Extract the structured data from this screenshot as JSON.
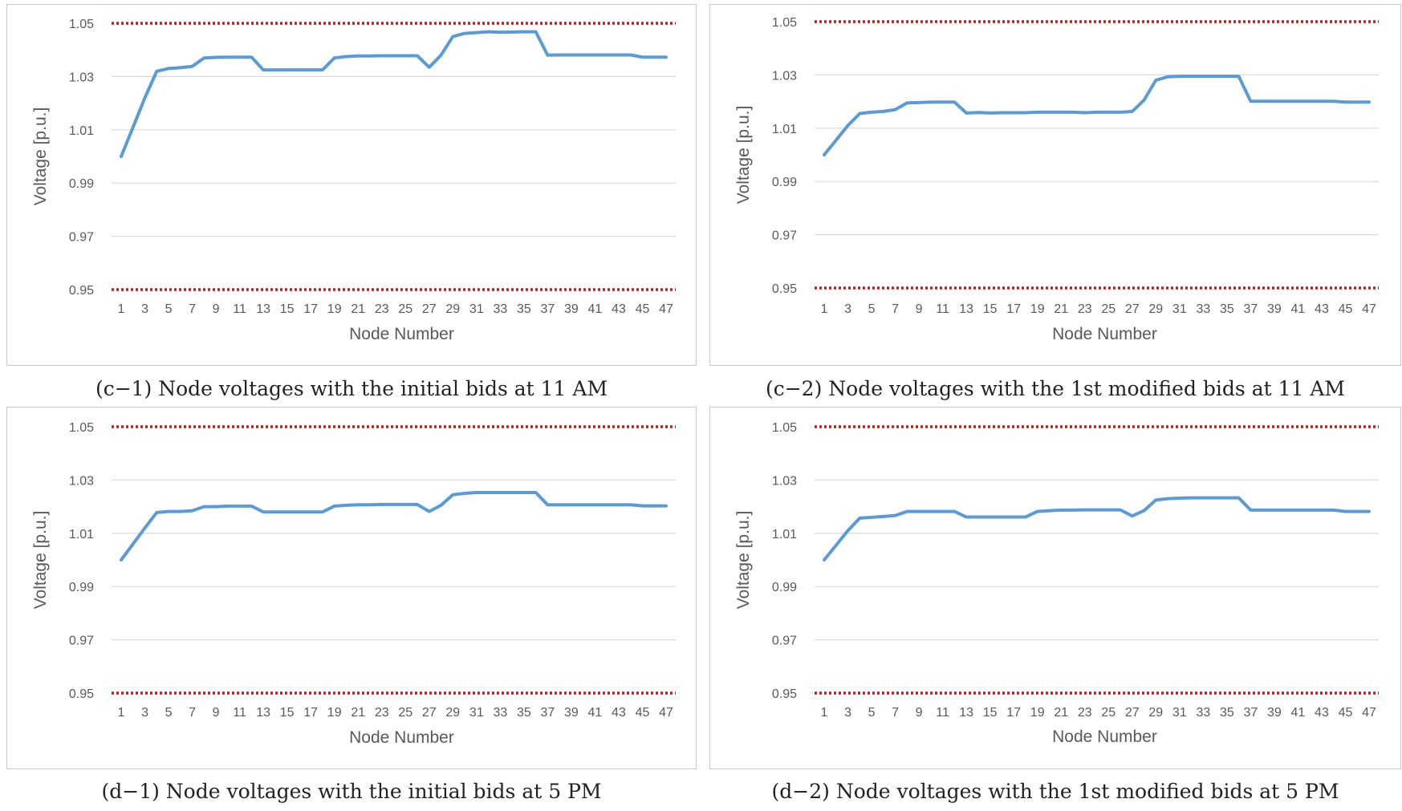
{
  "chart_data": [
    {
      "type": "line",
      "caption": "(c−1) Node voltages with the initial bids at 11 AM",
      "xlabel": "Node Number",
      "ylabel": "Voltage [p.u.]",
      "ylim": [
        0.95,
        1.05
      ],
      "yticks": [
        "1.05",
        "1.03",
        "1.01",
        "0.99",
        "0.97",
        "0.95"
      ],
      "xticks": [
        "1",
        "3",
        "5",
        "7",
        "9",
        "11",
        "13",
        "15",
        "17",
        "19",
        "21",
        "23",
        "25",
        "27",
        "29",
        "31",
        "33",
        "35",
        "37",
        "39",
        "41",
        "43",
        "45",
        "47"
      ],
      "limits": [
        1.05,
        0.95
      ],
      "grid": true,
      "x": [
        1,
        2,
        3,
        4,
        5,
        6,
        7,
        8,
        9,
        10,
        11,
        12,
        13,
        14,
        15,
        16,
        17,
        18,
        19,
        20,
        21,
        22,
        23,
        24,
        25,
        26,
        27,
        28,
        29,
        30,
        31,
        32,
        33,
        34,
        35,
        36,
        37,
        38,
        39,
        40,
        41,
        42,
        43,
        44,
        45,
        46,
        47
      ],
      "series": [
        {
          "values": [
            1.0,
            1.011,
            1.022,
            1.032,
            1.033,
            1.0333,
            1.0338,
            1.037,
            1.0372,
            1.0373,
            1.0373,
            1.0373,
            1.0325,
            1.0325,
            1.0325,
            1.0325,
            1.0325,
            1.0325,
            1.037,
            1.0375,
            1.0377,
            1.0377,
            1.0378,
            1.0378,
            1.0378,
            1.0378,
            1.0335,
            1.038,
            1.045,
            1.0462,
            1.0465,
            1.0468,
            1.0466,
            1.0467,
            1.0468,
            1.0468,
            1.038,
            1.0381,
            1.0381,
            1.0381,
            1.0381,
            1.0381,
            1.0381,
            1.0381,
            1.0373,
            1.0373,
            1.0373
          ]
        }
      ]
    },
    {
      "type": "line",
      "caption": "(c−2) Node voltages with the 1st modified bids at 11 AM",
      "xlabel": "Node Number",
      "ylabel": "Voltage [p.u.]",
      "ylim": [
        0.95,
        1.05
      ],
      "yticks": [
        "1.05",
        "1.03",
        "1.01",
        "0.99",
        "0.97",
        "0.95"
      ],
      "xticks": [
        "1",
        "3",
        "5",
        "7",
        "9",
        "11",
        "13",
        "15",
        "17",
        "19",
        "21",
        "23",
        "25",
        "27",
        "29",
        "31",
        "33",
        "35",
        "37",
        "39",
        "41",
        "43",
        "45",
        "47"
      ],
      "limits": [
        1.05,
        0.95
      ],
      "grid": true,
      "x": [
        1,
        2,
        3,
        4,
        5,
        6,
        7,
        8,
        9,
        10,
        11,
        12,
        13,
        14,
        15,
        16,
        17,
        18,
        19,
        20,
        21,
        22,
        23,
        24,
        25,
        26,
        27,
        28,
        29,
        30,
        31,
        32,
        33,
        34,
        35,
        36,
        37,
        38,
        39,
        40,
        41,
        42,
        43,
        44,
        45,
        46,
        47
      ],
      "series": [
        {
          "values": [
            1.0,
            1.0055,
            1.011,
            1.0155,
            1.016,
            1.0163,
            1.017,
            1.0195,
            1.0196,
            1.0198,
            1.0198,
            1.0198,
            1.0157,
            1.0159,
            1.0157,
            1.0158,
            1.0158,
            1.0158,
            1.016,
            1.016,
            1.016,
            1.016,
            1.0158,
            1.016,
            1.016,
            1.016,
            1.0163,
            1.0205,
            1.028,
            1.0293,
            1.0295,
            1.0295,
            1.0295,
            1.0295,
            1.0295,
            1.0295,
            1.0201,
            1.0201,
            1.0201,
            1.0201,
            1.0201,
            1.0201,
            1.0201,
            1.0201,
            1.0198,
            1.0198,
            1.0198
          ]
        }
      ]
    },
    {
      "type": "line",
      "caption": "(d−1) Node voltages with the initial bids at 5 PM",
      "xlabel": "Node Number",
      "ylabel": "Voltage [p.u.]",
      "ylim": [
        0.95,
        1.05
      ],
      "yticks": [
        "1.05",
        "1.03",
        "1.01",
        "0.99",
        "0.97",
        "0.95"
      ],
      "xticks": [
        "1",
        "3",
        "5",
        "7",
        "9",
        "11",
        "13",
        "15",
        "17",
        "19",
        "21",
        "23",
        "25",
        "27",
        "29",
        "31",
        "33",
        "35",
        "37",
        "39",
        "41",
        "43",
        "45",
        "47"
      ],
      "limits": [
        1.05,
        0.95
      ],
      "grid": true,
      "x": [
        1,
        2,
        3,
        4,
        5,
        6,
        7,
        8,
        9,
        10,
        11,
        12,
        13,
        14,
        15,
        16,
        17,
        18,
        19,
        20,
        21,
        22,
        23,
        24,
        25,
        26,
        27,
        28,
        29,
        30,
        31,
        32,
        33,
        34,
        35,
        36,
        37,
        38,
        39,
        40,
        41,
        42,
        43,
        44,
        45,
        46,
        47
      ],
      "series": [
        {
          "values": [
            1.0,
            1.006,
            1.012,
            1.0178,
            1.0182,
            1.0182,
            1.0185,
            1.02,
            1.02,
            1.0202,
            1.0202,
            1.0202,
            1.018,
            1.018,
            1.018,
            1.018,
            1.018,
            1.018,
            1.0202,
            1.0205,
            1.0207,
            1.0207,
            1.0208,
            1.0208,
            1.0208,
            1.0208,
            1.0182,
            1.0205,
            1.0245,
            1.025,
            1.0253,
            1.0253,
            1.0253,
            1.0253,
            1.0253,
            1.0253,
            1.0207,
            1.0207,
            1.0207,
            1.0207,
            1.0207,
            1.0207,
            1.0207,
            1.0207,
            1.0203,
            1.0203,
            1.0203
          ]
        }
      ]
    },
    {
      "type": "line",
      "caption": "(d−2) Node voltages with the 1st modified bids at 5 PM",
      "xlabel": "Node Number",
      "ylabel": "Voltage [p.u.]",
      "ylim": [
        0.95,
        1.05
      ],
      "yticks": [
        "1.05",
        "1.03",
        "1.01",
        "0.99",
        "0.97",
        "0.95"
      ],
      "xticks": [
        "1",
        "3",
        "5",
        "7",
        "9",
        "11",
        "13",
        "15",
        "17",
        "19",
        "21",
        "23",
        "25",
        "27",
        "29",
        "31",
        "33",
        "35",
        "37",
        "39",
        "41",
        "43",
        "45",
        "47"
      ],
      "limits": [
        1.05,
        0.95
      ],
      "grid": true,
      "x": [
        1,
        2,
        3,
        4,
        5,
        6,
        7,
        8,
        9,
        10,
        11,
        12,
        13,
        14,
        15,
        16,
        17,
        18,
        19,
        20,
        21,
        22,
        23,
        24,
        25,
        26,
        27,
        28,
        29,
        30,
        31,
        32,
        33,
        34,
        35,
        36,
        37,
        38,
        39,
        40,
        41,
        42,
        43,
        44,
        45,
        46,
        47
      ],
      "series": [
        {
          "values": [
            1.0,
            1.0055,
            1.011,
            1.0157,
            1.016,
            1.0163,
            1.0167,
            1.0182,
            1.0182,
            1.0182,
            1.0182,
            1.0182,
            1.0161,
            1.0161,
            1.0161,
            1.0161,
            1.0161,
            1.0161,
            1.0182,
            1.0185,
            1.0187,
            1.0187,
            1.0188,
            1.0188,
            1.0188,
            1.0188,
            1.0165,
            1.0185,
            1.0225,
            1.023,
            1.0232,
            1.0233,
            1.0233,
            1.0233,
            1.0233,
            1.0233,
            1.0187,
            1.0187,
            1.0187,
            1.0187,
            1.0187,
            1.0187,
            1.0187,
            1.0187,
            1.0182,
            1.0182,
            1.0182
          ]
        }
      ]
    }
  ],
  "colors": {
    "line": "#5b9bd5",
    "limit": "#ff0000",
    "grid": "#d9d9d9",
    "text": "#595959"
  }
}
